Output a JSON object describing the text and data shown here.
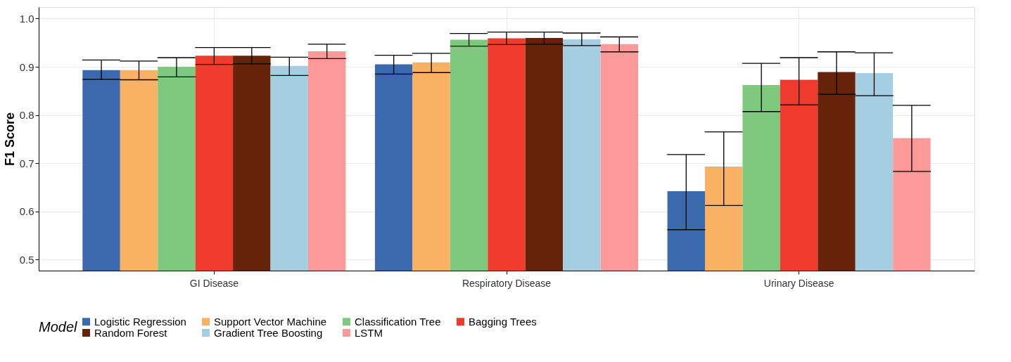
{
  "chart_data": {
    "type": "bar",
    "ylabel": "F1 Score",
    "legend_title": "Model",
    "legend": "bottom",
    "grid": true,
    "categories": [
      "GI Disease",
      "Respiratory Disease",
      "Urinary Disease"
    ],
    "ylim": [
      0.477,
      1.024
    ],
    "yticks": [
      0.5,
      0.6,
      0.7,
      0.8,
      0.9,
      {
        "value": 1,
        "label": "1.0"
      }
    ],
    "series": [
      {
        "name": "Logistic Regression",
        "color": "#3a6aad",
        "values": [
          0.893,
          0.905,
          0.642
        ],
        "errors": [
          [
            0.874,
            0.914
          ],
          [
            0.885,
            0.924
          ],
          [
            0.562,
            0.718
          ]
        ]
      },
      {
        "name": "Support Vector Machine",
        "color": "#f9b264",
        "values": [
          0.893,
          0.909,
          0.693
        ],
        "errors": [
          [
            0.873,
            0.912
          ],
          [
            0.888,
            0.928
          ],
          [
            0.612,
            0.765
          ]
        ]
      },
      {
        "name": "Classification Tree",
        "color": "#7fc97f",
        "values": [
          0.9,
          0.956,
          0.862
        ],
        "errors": [
          [
            0.879,
            0.919
          ],
          [
            0.943,
            0.969
          ],
          [
            0.807,
            0.907
          ]
        ]
      },
      {
        "name": "Bagging Trees",
        "color": "#ee3b2d",
        "values": [
          0.923,
          0.959,
          0.873
        ],
        "errors": [
          [
            0.905,
            0.94
          ],
          [
            0.946,
            0.972
          ],
          [
            0.821,
            0.919
          ]
        ]
      },
      {
        "name": "Random Forest",
        "color": "#66230a",
        "values": [
          0.923,
          0.96,
          0.889
        ],
        "errors": [
          [
            0.906,
            0.94
          ],
          [
            0.947,
            0.972
          ],
          [
            0.843,
            0.931
          ]
        ]
      },
      {
        "name": "Gradient Tree Boosting",
        "color": "#a6cee3",
        "values": [
          0.902,
          0.957,
          0.887
        ],
        "errors": [
          [
            0.882,
            0.92
          ],
          [
            0.944,
            0.97
          ],
          [
            0.84,
            0.929
          ]
        ]
      },
      {
        "name": "LSTM",
        "color": "#fb9a99",
        "values": [
          0.932,
          0.947,
          0.752
        ],
        "errors": [
          [
            0.917,
            0.947
          ],
          [
            0.931,
            0.962
          ],
          [
            0.683,
            0.82
          ]
        ]
      }
    ]
  }
}
